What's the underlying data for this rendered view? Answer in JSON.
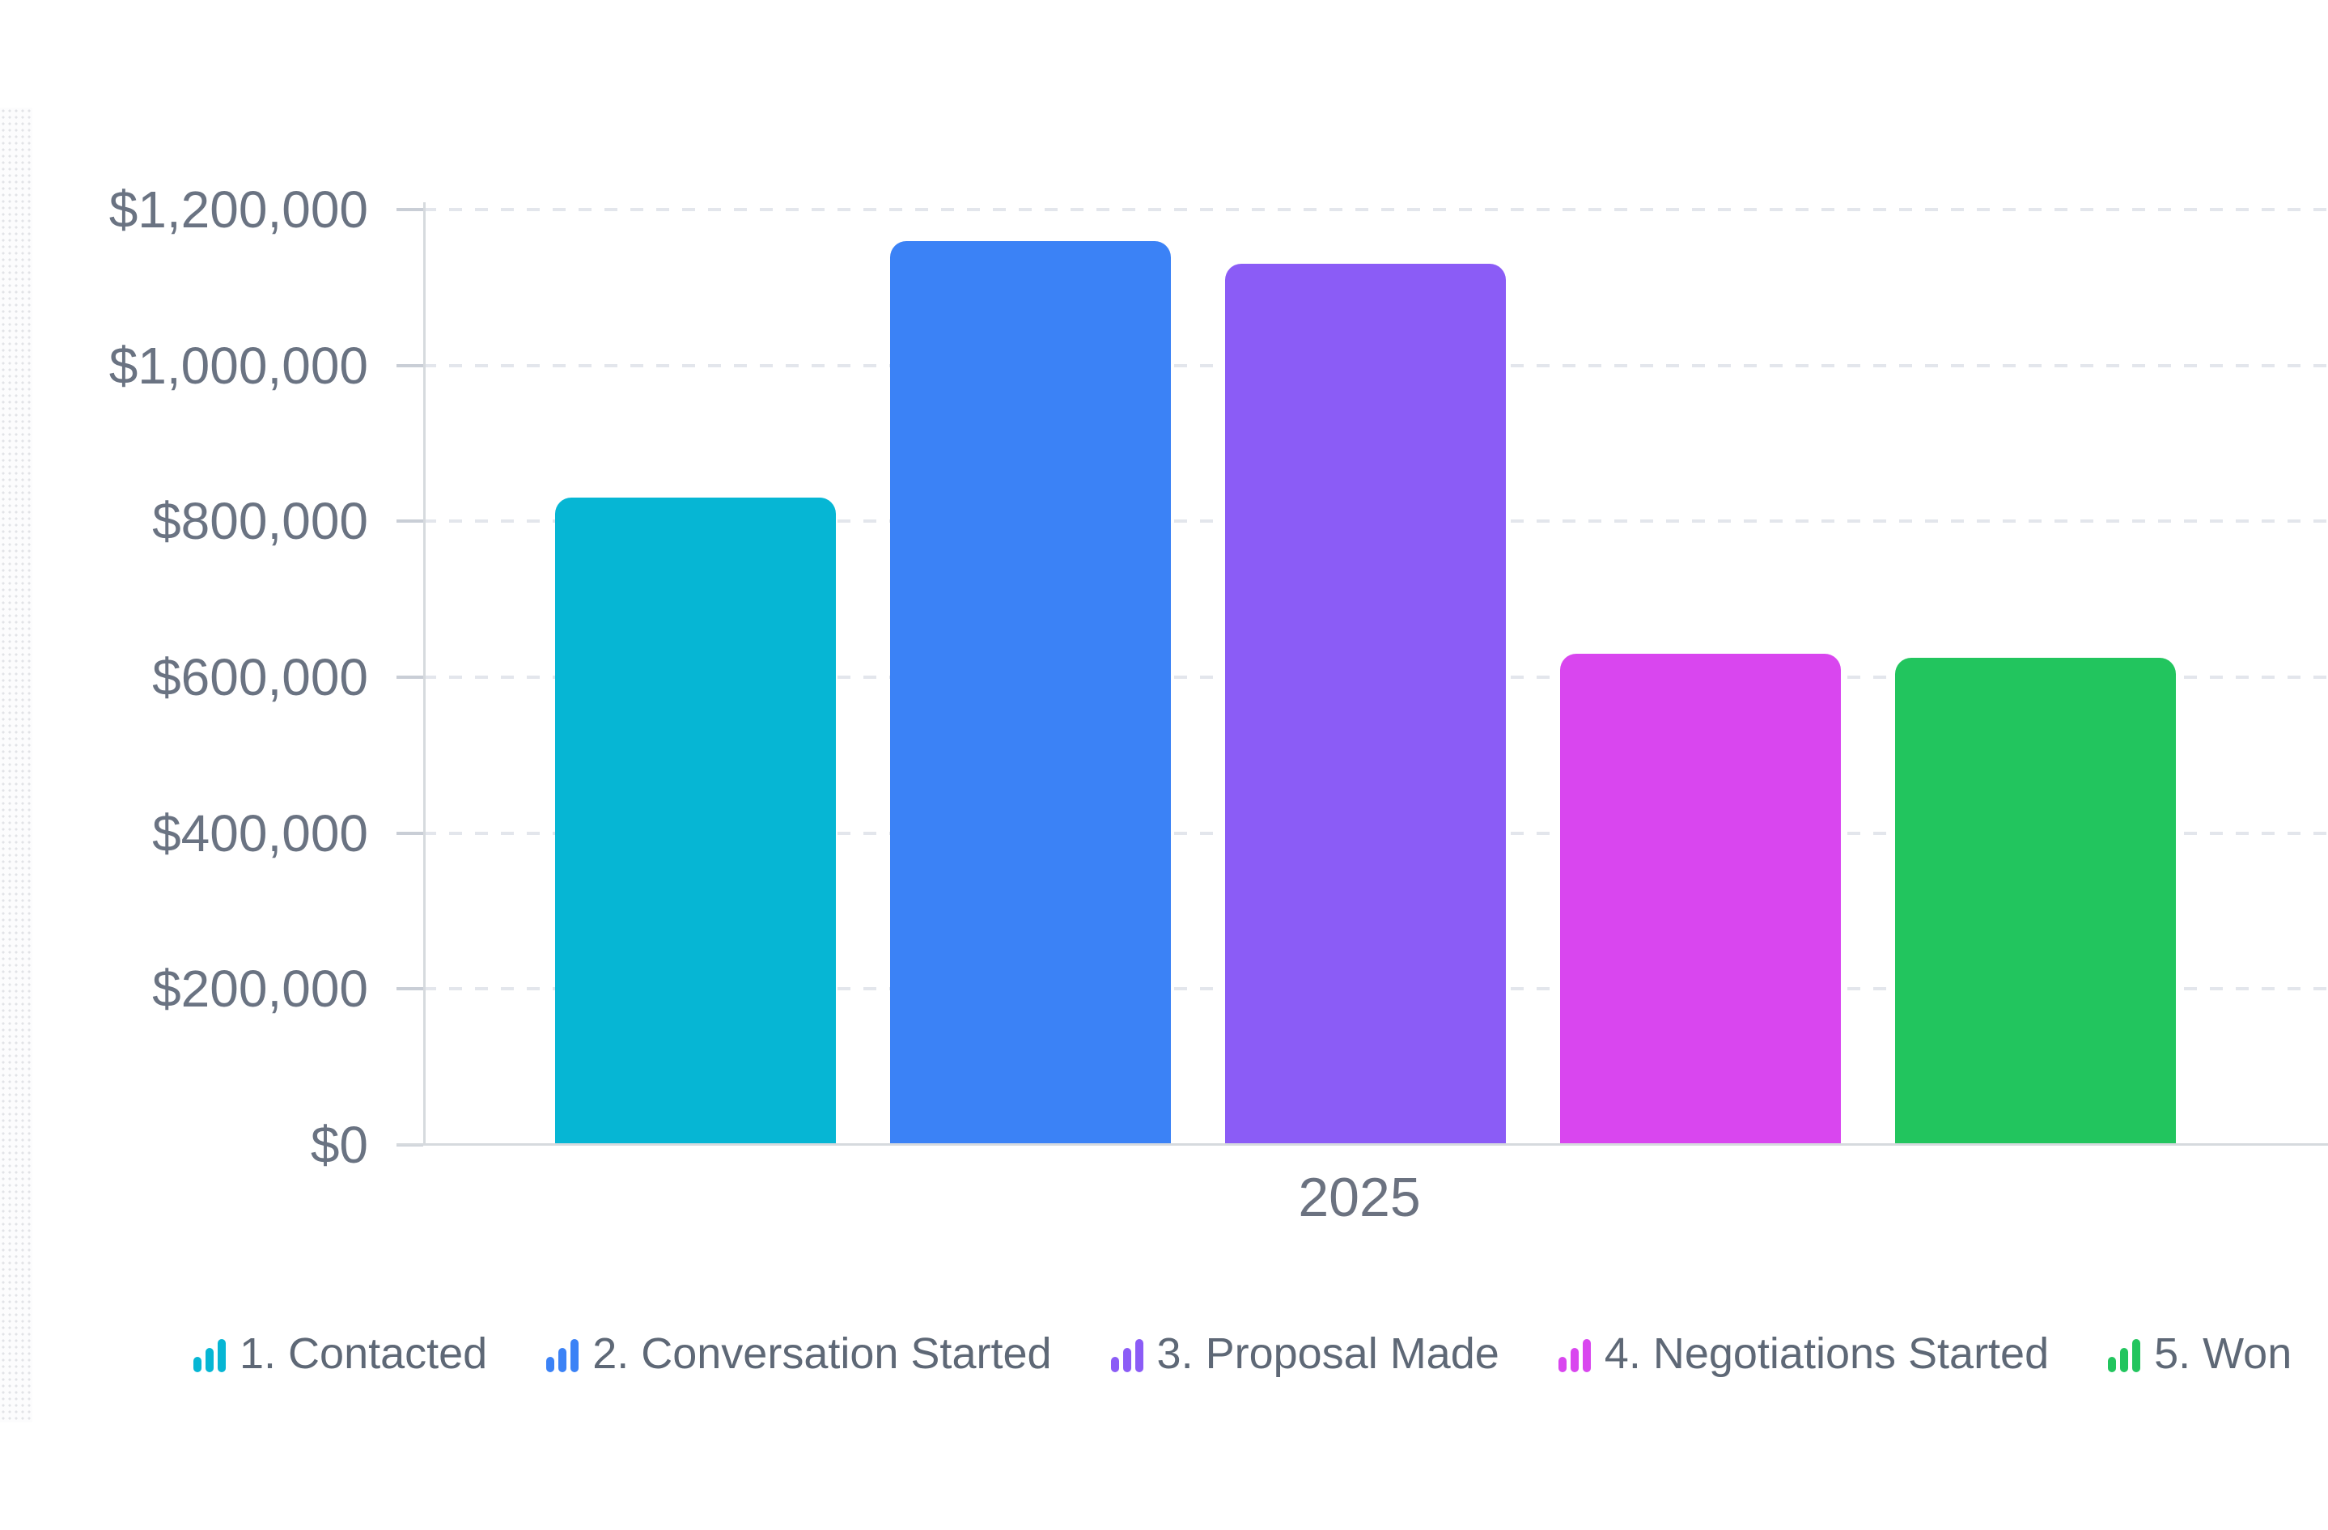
{
  "chart_data": {
    "type": "bar",
    "title": "",
    "categories": [
      "2025"
    ],
    "series": [
      {
        "name": "1. Contacted",
        "values": [
          830000
        ],
        "color": "#06b6d4"
      },
      {
        "name": "2. Conversation Started",
        "values": [
          1160000
        ],
        "color": "#3b82f6"
      },
      {
        "name": "3. Proposal Made",
        "values": [
          1130000
        ],
        "color": "#8b5cf6"
      },
      {
        "name": "4. Negotiations Started",
        "values": [
          630000
        ],
        "color": "#d946ef"
      },
      {
        "name": "5. Won",
        "values": [
          625000
        ],
        "color": "#22c55e"
      }
    ],
    "xlabel": "",
    "ylabel": "",
    "ylim": [
      0,
      1200000
    ],
    "y_tick_step": 200000,
    "y_tick_labels": [
      "$0",
      "$200,000",
      "$400,000",
      "$600,000",
      "$800,000",
      "$1,000,000",
      "$1,200,000"
    ],
    "grid": "horizontal-dashed",
    "legend_position": "bottom",
    "legend_icon": "ascending-bars-icon"
  },
  "colors": {
    "axis_text": "#6a7382",
    "x_label_text": "#6b7280",
    "legend_text": "#5e6876",
    "gridline": "#e3e6ec",
    "axis_line": "#d6dade",
    "tick": "#c9ced6",
    "background": "#ffffff"
  }
}
